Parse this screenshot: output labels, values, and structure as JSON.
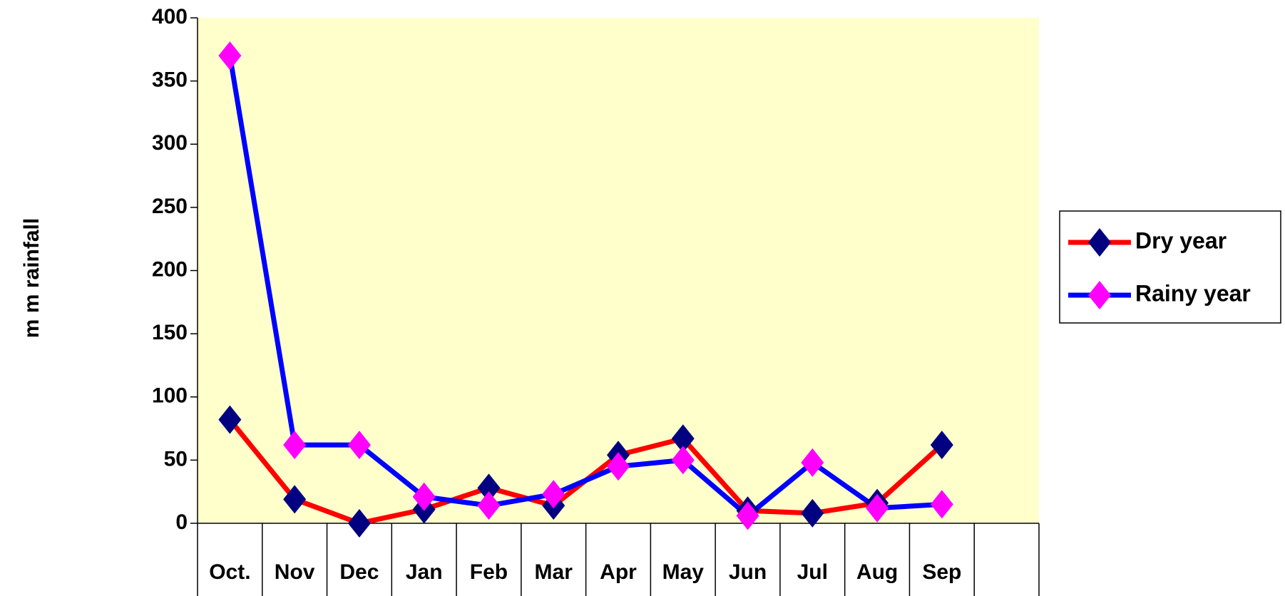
{
  "chart_data": {
    "type": "line",
    "y_label": "m m  rainfall",
    "categories": [
      "Oct.",
      "Nov",
      "Dec",
      "Jan",
      "Feb",
      "Mar",
      "Apr",
      "May",
      "Jun",
      "Jul",
      "Aug",
      "Sep",
      null
    ],
    "series": [
      {
        "name": "Dry year",
        "color": "#ff0000",
        "marker_color": "#000080",
        "values": [
          82,
          19,
          0,
          11,
          28,
          14,
          54,
          67,
          10,
          8,
          16,
          62,
          null
        ]
      },
      {
        "name": "Rainy year",
        "color": "#0000ff",
        "marker_color": "#ff00ff",
        "values": [
          370,
          62,
          62,
          21,
          14,
          23,
          45,
          50,
          6,
          48,
          12,
          15,
          null
        ]
      }
    ],
    "ylim": [
      0,
      400
    ],
    "yticks": [
      0,
      50,
      100,
      150,
      200,
      250,
      300,
      350,
      400
    ],
    "plot_background": "#ffffcc",
    "legend": "right"
  }
}
